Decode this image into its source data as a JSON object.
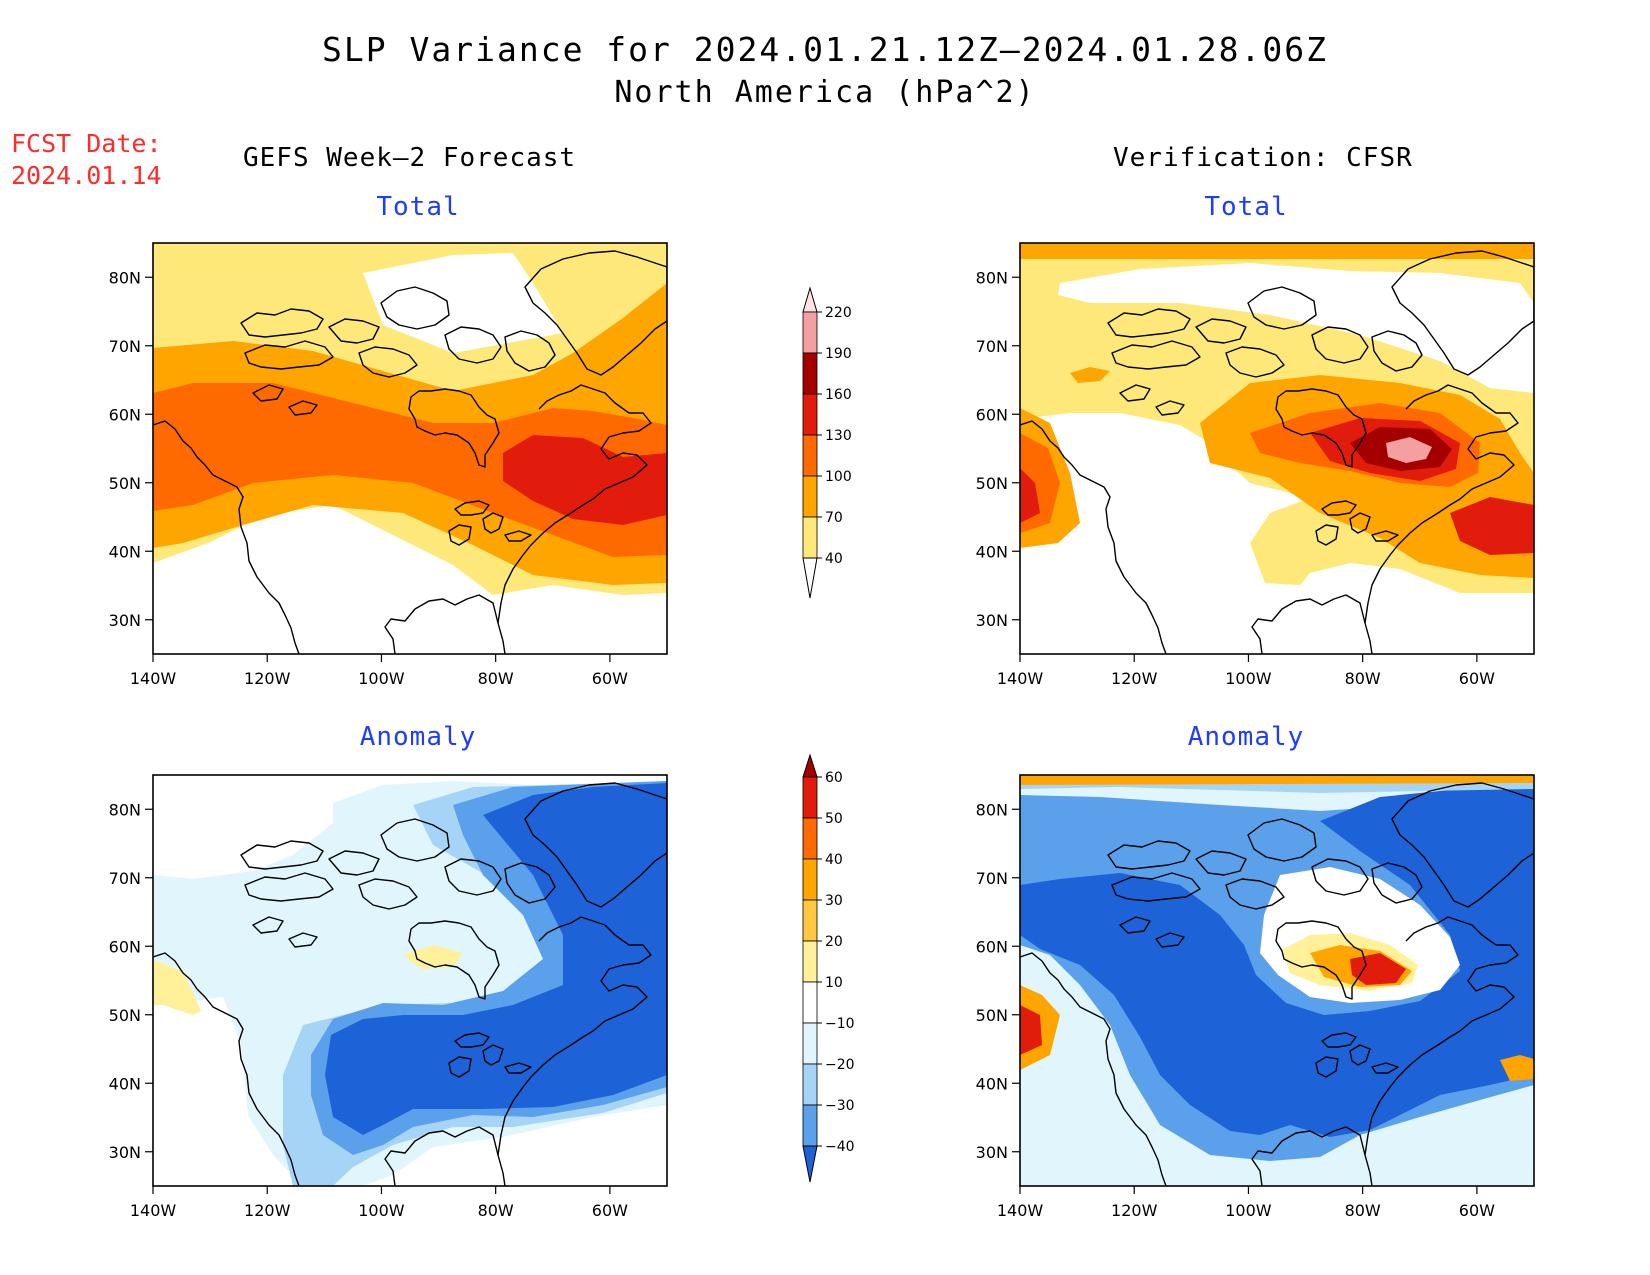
{
  "header": {
    "title": "SLP Variance for 2024.01.21.12Z–2024.01.28.06Z",
    "subtitle": "North America (hPa^2)",
    "fcst_label": "FCST Date:",
    "fcst_date": "2024.01.14"
  },
  "columns": {
    "left": "GEFS Week–2 Forecast",
    "right": "Verification: CFSR"
  },
  "panels": [
    {
      "id": "forecast-total",
      "title": "Total"
    },
    {
      "id": "verification-total",
      "title": "Total"
    },
    {
      "id": "forecast-anomaly",
      "title": "Anomaly"
    },
    {
      "id": "verification-anomaly",
      "title": "Anomaly"
    }
  ],
  "axes": {
    "lat_labels": [
      "80N",
      "70N",
      "60N",
      "50N",
      "40N",
      "30N"
    ],
    "lat_values": [
      80,
      70,
      60,
      50,
      40,
      30
    ],
    "lon_labels": [
      "140W",
      "120W",
      "100W",
      "80W",
      "60W"
    ],
    "lon_values": [
      -140,
      -120,
      -100,
      -80,
      -60
    ],
    "lon_range": [
      -140,
      -50
    ],
    "lat_range": [
      25,
      85
    ]
  },
  "colorbars": {
    "total": {
      "labels": [
        "40",
        "70",
        "100",
        "130",
        "160",
        "190",
        "220"
      ],
      "levels": [
        40,
        70,
        100,
        130,
        160,
        190,
        220
      ],
      "colors": [
        "#ffe87a",
        "#ffa500",
        "#ff6a00",
        "#e11c0c",
        "#a50000",
        "#f5a0a0",
        "#fde3e3"
      ]
    },
    "anomaly": {
      "labels": [
        "−40",
        "−30",
        "−20",
        "−10",
        "10",
        "20",
        "30",
        "40",
        "50",
        "60"
      ],
      "levels": [
        -40,
        -30,
        -20,
        -10,
        10,
        20,
        30,
        40,
        50,
        60
      ],
      "colors": [
        "#1e62d8",
        "#5aa0ea",
        "#a6d4f6",
        "#e0f6fc",
        "#ffffff",
        "#fff09a",
        "#ffc840",
        "#ffa500",
        "#ff6a00",
        "#e11c0c",
        "#a50000"
      ]
    }
  }
}
